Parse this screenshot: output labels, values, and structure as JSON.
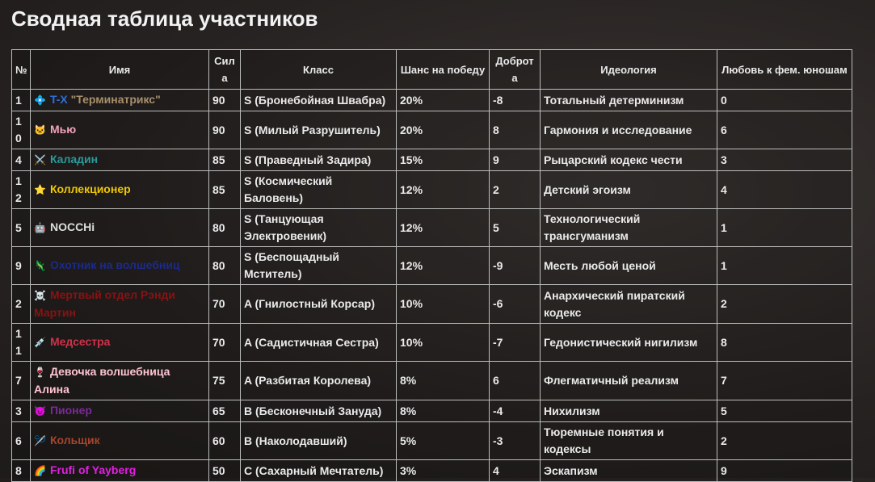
{
  "title": "Сводная таблица участников",
  "table": {
    "headers": [
      "№",
      "Имя",
      "Сила",
      "Класс",
      "Шанс на победу",
      "Доброта",
      "Идеология",
      "Любовь к фем. юношам"
    ],
    "rows": [
      {
        "num": 1,
        "icon": "💠",
        "name": [
          {
            "text": "T-X",
            "color": "#2f6fd8"
          },
          {
            "text": " \"Терминатрикс\"",
            "color": "#a88f6c"
          }
        ],
        "power": 90,
        "class": "S (Бронебойная Швабра)",
        "chance": "20%",
        "kindness": -8,
        "ideology": "Тотальный детерминизм",
        "love": 0
      },
      {
        "num": 10,
        "icon": "🐱",
        "name": [
          {
            "text": "Мью",
            "color": "#f4a3bb"
          }
        ],
        "power": 90,
        "class": "S (Милый Разрушитель)",
        "chance": "20%",
        "kindness": 8,
        "ideology": "Гармония и исследование",
        "love": 6
      },
      {
        "num": 4,
        "icon": "⚔️",
        "name": [
          {
            "text": "Каладин",
            "color": "#2a9a9a"
          }
        ],
        "power": 85,
        "class": "S (Праведный Задира)",
        "chance": "15%",
        "kindness": 9,
        "ideology": "Рыцарский кодекс чести",
        "love": 3
      },
      {
        "num": 12,
        "icon": "⭐",
        "name": [
          {
            "text": "Коллекционер",
            "color": "#f0c800"
          }
        ],
        "power": 85,
        "class": "S (Космический Баловень)",
        "chance": "12%",
        "kindness": 2,
        "ideology": "Детский эгоизм",
        "love": 4
      },
      {
        "num": 5,
        "icon": "🤖",
        "name": [
          {
            "text": "NOCCHi",
            "color": "#dddddd"
          }
        ],
        "power": 80,
        "class": "S (Танцующая Электровеник)",
        "chance": "12%",
        "kindness": 5,
        "ideology": "Технологический трансгуманизм",
        "love": 1
      },
      {
        "num": 9,
        "icon": "🦎",
        "name": [
          {
            "text": "Охотник на волшебниц",
            "color": "#1c2a8c"
          }
        ],
        "power": 80,
        "class": "S (Беспощадный Мститель)",
        "chance": "12%",
        "kindness": -9,
        "ideology": "Месть любой ценой",
        "love": 1
      },
      {
        "num": 2,
        "icon": "☠️",
        "name": [
          {
            "text": "Мертвый отдел Рэнди Мартин",
            "color": "#8a1212"
          }
        ],
        "power": 70,
        "class": "A (Гнилостный Корсар)",
        "chance": "10%",
        "kindness": -6,
        "ideology": "Анархический пиратский кодекс",
        "love": 2
      },
      {
        "num": 11,
        "icon": "💉",
        "name": [
          {
            "text": "Медсестра",
            "color": "#d0304a"
          }
        ],
        "power": 70,
        "class": "A (Садистичная Сестра)",
        "chance": "10%",
        "kindness": -7,
        "ideology": "Гедонистический нигилизм",
        "love": 8
      },
      {
        "num": 7,
        "icon": "🍷",
        "name": [
          {
            "text": "Девочка волшебница Алина",
            "color": "#ffc4d2"
          }
        ],
        "power": 75,
        "class": "A (Разбитая Королева)",
        "chance": "8%",
        "kindness": 6,
        "ideology": "Флегматичный реализм",
        "love": 7
      },
      {
        "num": 3,
        "icon": "😈",
        "name": [
          {
            "text": "Пионер",
            "color": "#7a2a9a"
          }
        ],
        "power": 65,
        "class": "B (Бесконечный Зануда)",
        "chance": "8%",
        "kindness": -4,
        "ideology": "Нихилизм",
        "love": 5
      },
      {
        "num": 6,
        "icon": "🪡",
        "name": [
          {
            "text": "Кольщик",
            "color": "#a8452c"
          }
        ],
        "power": 60,
        "class": "B (Наколодавший)",
        "chance": "5%",
        "kindness": -3,
        "ideology": "Тюремные понятия и кодексы",
        "love": 2
      },
      {
        "num": 8,
        "icon": "🌈",
        "name": [
          {
            "text": "Frufi of Yayberg",
            "color": "#e020e0"
          }
        ],
        "power": 50,
        "class": "C (Сахарный Мечтатель)",
        "chance": "3%",
        "kindness": 4,
        "ideology": "Эскапизм",
        "love": 9
      }
    ]
  }
}
